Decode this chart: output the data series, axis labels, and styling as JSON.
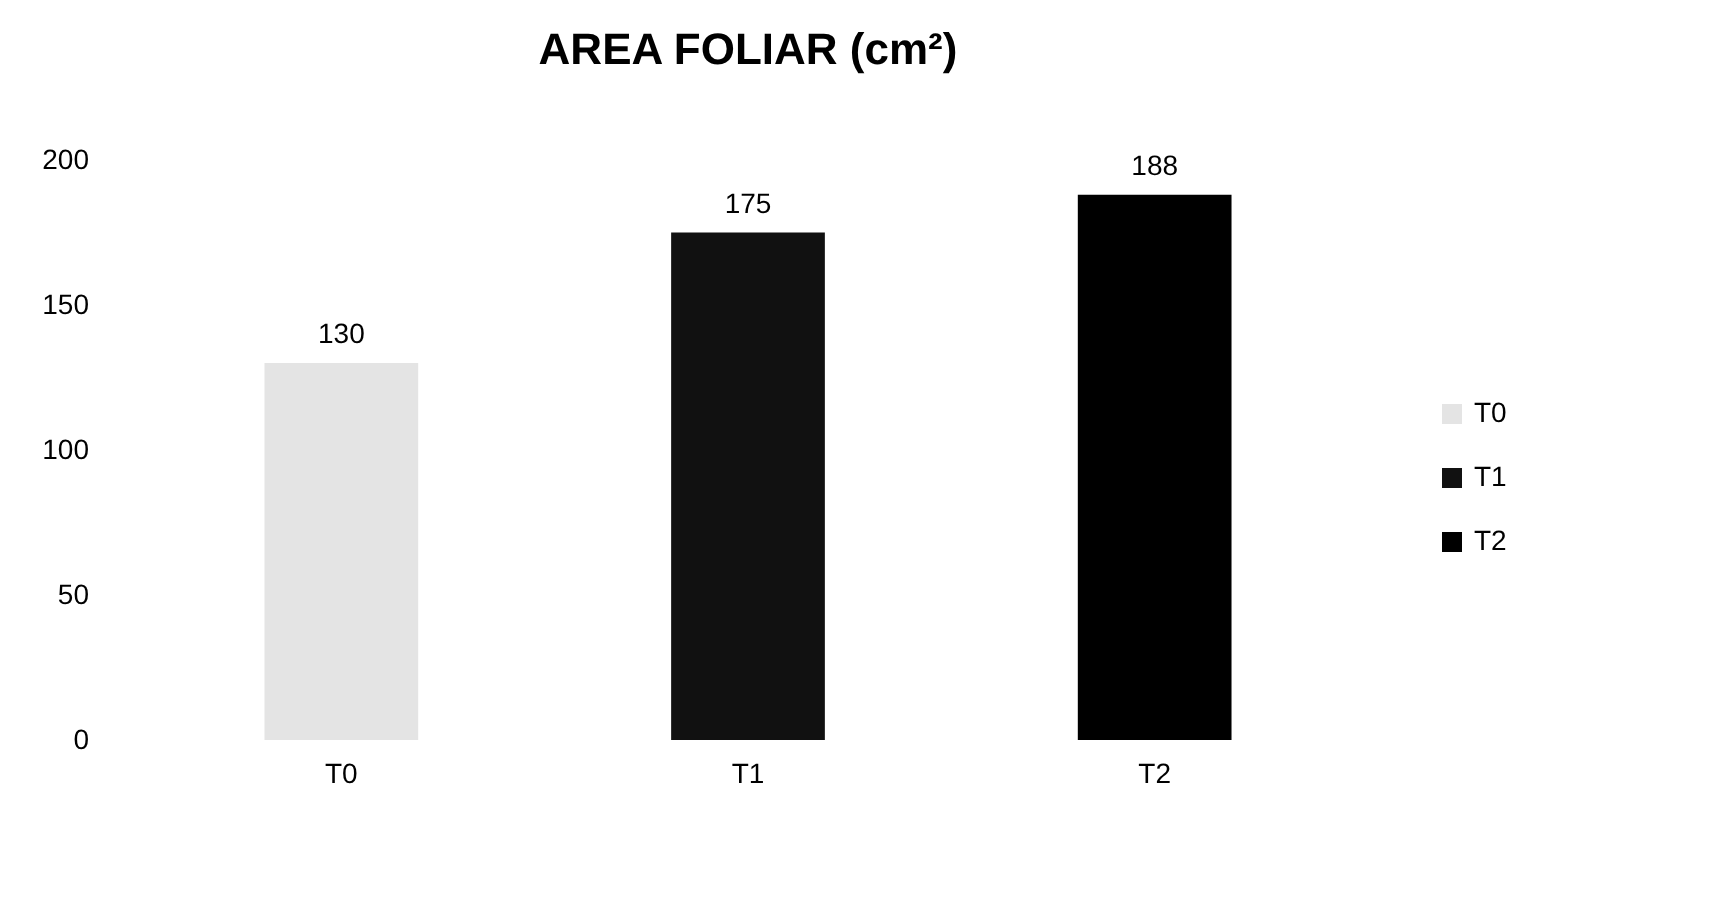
{
  "chart_data": {
    "type": "bar",
    "title": "AREA FOLIAR (cm²)",
    "categories": [
      "T0",
      "T1",
      "T2"
    ],
    "series": [
      {
        "name": "T0",
        "color": "#e4e4e4",
        "values": [
          130,
          null,
          null
        ]
      },
      {
        "name": "T1",
        "color": "#111111",
        "values": [
          null,
          175,
          null
        ]
      },
      {
        "name": "T2",
        "color": "#000000",
        "values": [
          null,
          null,
          188
        ]
      }
    ],
    "ylim": [
      0,
      200
    ],
    "yticks": [
      0,
      50,
      100,
      150,
      200
    ],
    "data_labels": true,
    "legend": "right"
  }
}
